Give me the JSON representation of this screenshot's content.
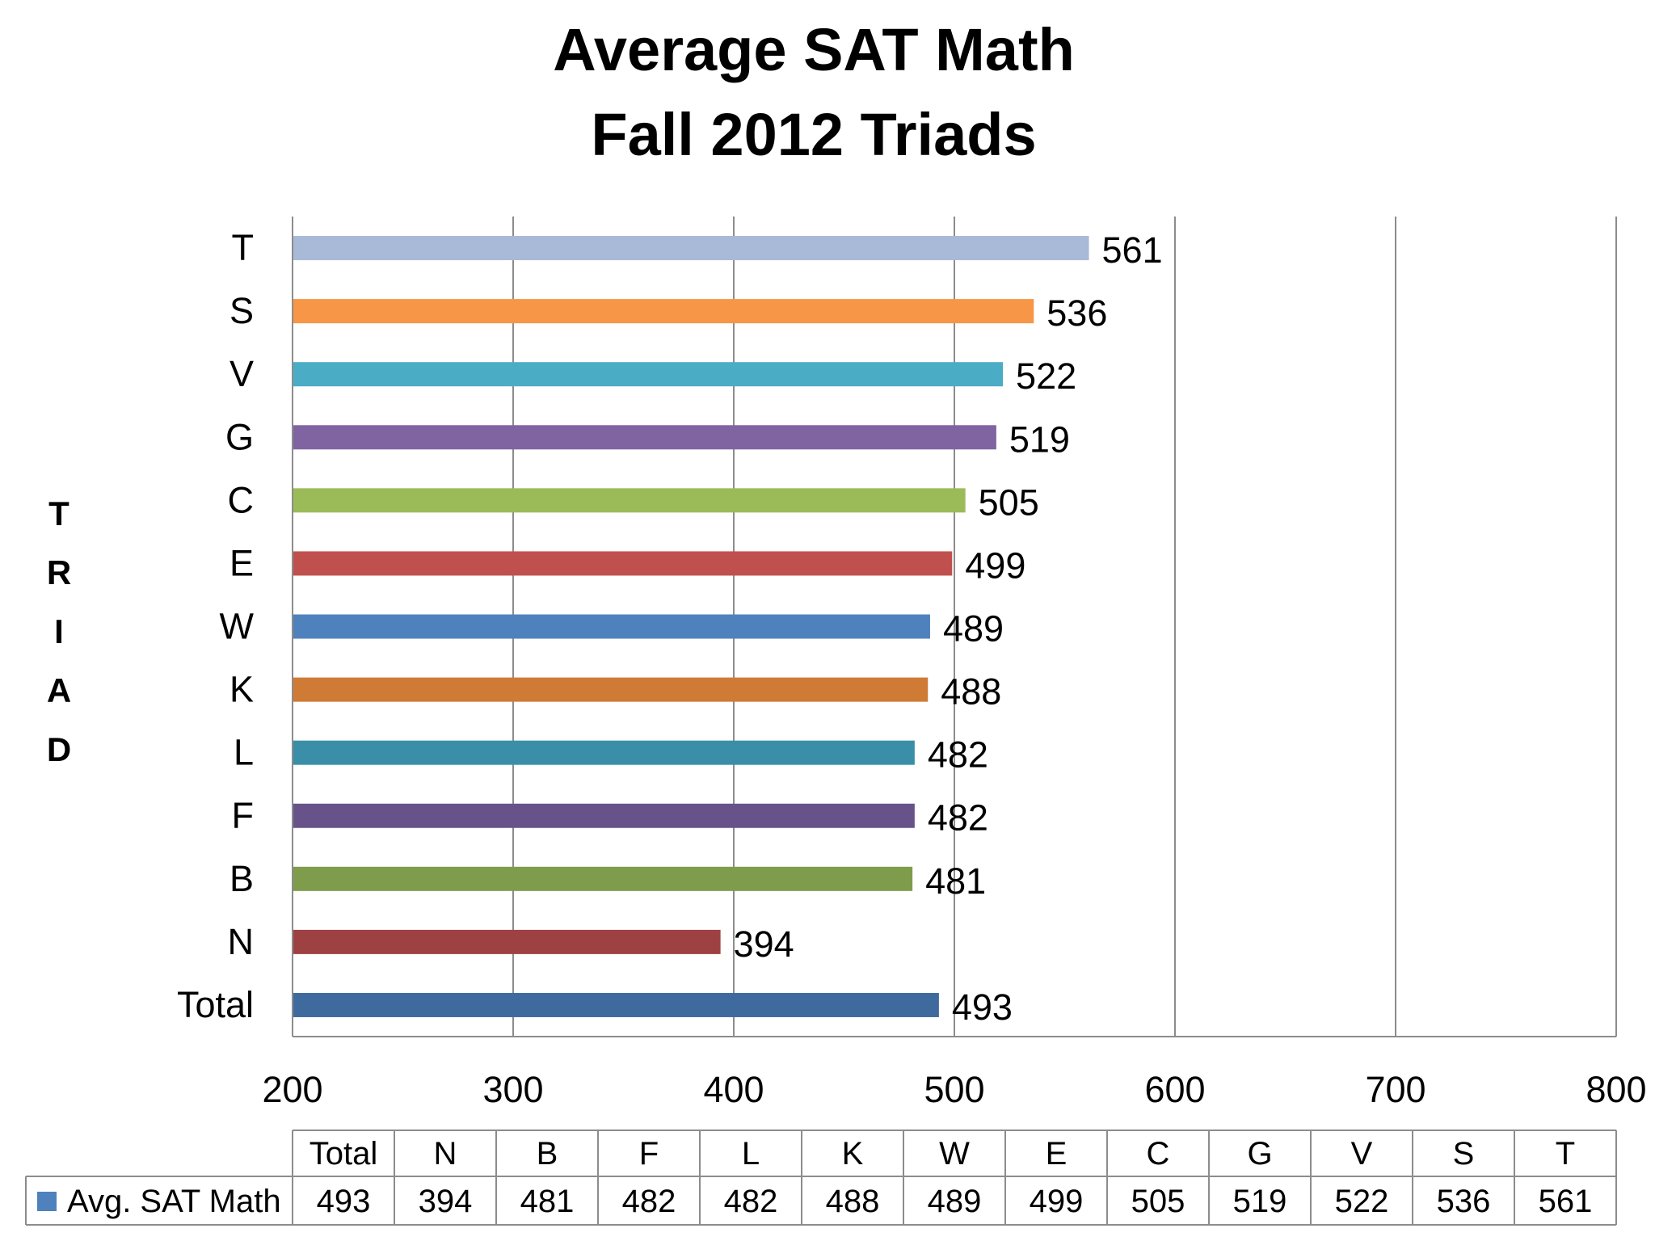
{
  "chart_data": {
    "type": "bar",
    "orientation": "horizontal",
    "title_lines": [
      "Average SAT Math",
      "Fall 2012 Triads"
    ],
    "ylabel_letters": [
      "T",
      "R",
      "I",
      "A",
      "D"
    ],
    "xlim": [
      200,
      800
    ],
    "xticks": [
      "200",
      "300",
      "400",
      "500",
      "600",
      "700",
      "800"
    ],
    "grid": true,
    "categories": [
      "Total",
      "N",
      "B",
      "F",
      "L",
      "K",
      "W",
      "E",
      "C",
      "G",
      "V",
      "S",
      "T"
    ],
    "series": [
      {
        "name": "Avg. SAT Math",
        "values": [
          493,
          394,
          481,
          482,
          482,
          488,
          489,
          499,
          505,
          519,
          522,
          536,
          561
        ]
      }
    ],
    "bar_colors": [
      "#3F6A9E",
      "#9E4142",
      "#7E9C4B",
      "#67528A",
      "#3A8EA7",
      "#CF7A35",
      "#4F81BD",
      "#C0504D",
      "#9BBB59",
      "#8064A2",
      "#4BACC6",
      "#F79646",
      "#A9B9D8"
    ],
    "legend_color": "#4F81BD",
    "data_table": true
  }
}
